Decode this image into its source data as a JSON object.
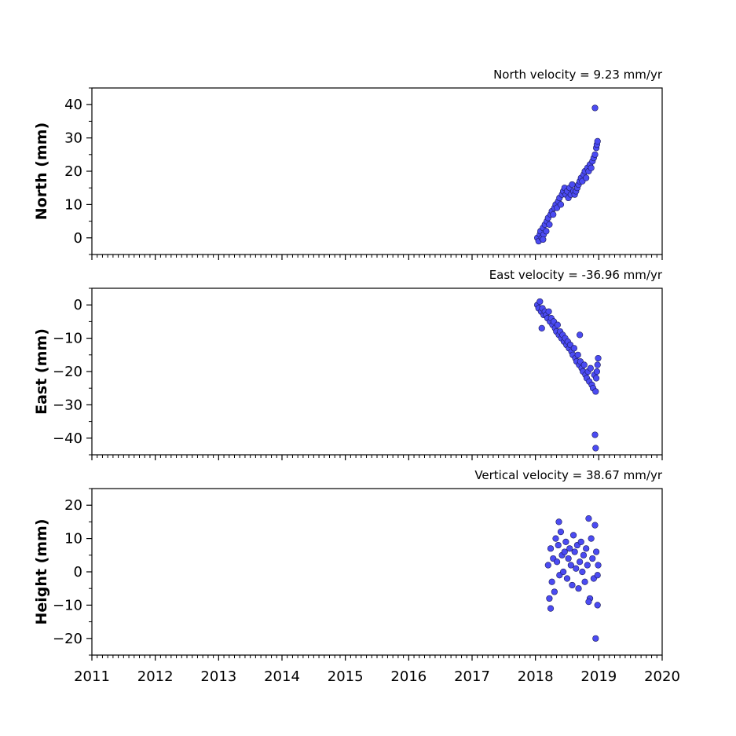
{
  "chart_data": [
    {
      "type": "scatter",
      "velocity_label": "North velocity = 9.23 mm/yr",
      "ylabel": "North (mm)",
      "xlim": [
        2011,
        2020
      ],
      "ylim": [
        -5,
        45
      ],
      "yticks": [
        0,
        10,
        20,
        30,
        40
      ],
      "yticklabels": [
        "0",
        "10",
        "20",
        "30",
        "40"
      ],
      "marker_color": "#4b4bf2",
      "series": [
        {
          "x": [
            2018.03,
            2018.05,
            2018.07,
            2018.08,
            2018.1,
            2018.12,
            2018.13,
            2018.15,
            2018.17,
            2018.18,
            2018.2,
            2018.22,
            2018.24,
            2018.26,
            2018.28,
            2018.3,
            2018.32,
            2018.34,
            2018.36,
            2018.38,
            2018.4,
            2018.42,
            2018.44,
            2018.46,
            2018.48,
            2018.5,
            2018.52,
            2018.54,
            2018.56,
            2018.58,
            2018.6,
            2018.62,
            2018.64,
            2018.66,
            2018.68,
            2018.7,
            2018.72,
            2018.74,
            2018.76,
            2018.78,
            2018.8,
            2018.82,
            2018.84,
            2018.86,
            2018.88,
            2018.9,
            2018.92,
            2018.94,
            2018.96,
            2018.97,
            2018.98,
            2018.94,
            2018.12
          ],
          "y": [
            0,
            -1,
            1,
            2,
            0,
            3,
            1,
            4,
            2,
            5,
            6,
            4,
            7,
            8,
            7,
            9,
            10,
            9,
            11,
            12,
            10,
            13,
            14,
            15,
            13,
            14,
            12,
            15,
            13,
            16,
            14,
            13,
            14,
            15,
            16,
            17,
            18,
            17,
            19,
            20,
            18,
            21,
            20,
            22,
            21,
            23,
            24,
            25,
            27,
            28,
            29,
            39,
            -0.5
          ]
        }
      ]
    },
    {
      "type": "scatter",
      "velocity_label": "East velocity = -36.96 mm/yr",
      "ylabel": "East (mm)",
      "xlim": [
        2011,
        2020
      ],
      "ylim": [
        -45,
        5
      ],
      "yticks": [
        0,
        -10,
        -20,
        -30,
        -40
      ],
      "yticklabels": [
        "0",
        "−10",
        "−20",
        "−30",
        "−40"
      ],
      "marker_color": "#4b4bf2",
      "series": [
        {
          "x": [
            2018.03,
            2018.05,
            2018.07,
            2018.09,
            2018.11,
            2018.13,
            2018.15,
            2018.17,
            2018.19,
            2018.21,
            2018.23,
            2018.25,
            2018.27,
            2018.29,
            2018.31,
            2018.33,
            2018.35,
            2018.37,
            2018.39,
            2018.41,
            2018.43,
            2018.45,
            2018.47,
            2018.49,
            2018.51,
            2018.53,
            2018.55,
            2018.57,
            2018.59,
            2018.61,
            2018.63,
            2018.65,
            2018.67,
            2018.69,
            2018.71,
            2018.73,
            2018.75,
            2018.77,
            2018.79,
            2018.81,
            2018.83,
            2018.85,
            2018.87,
            2018.89,
            2018.91,
            2018.93,
            2018.95,
            2018.96,
            2018.97,
            2018.98,
            2018.99,
            2018.94,
            2018.95,
            2018.1,
            2018.7
          ],
          "y": [
            0,
            -1,
            1,
            -2,
            -1,
            -3,
            -2,
            -3,
            -4,
            -2,
            -5,
            -4,
            -6,
            -5,
            -7,
            -8,
            -6,
            -9,
            -8,
            -10,
            -9,
            -11,
            -10,
            -12,
            -11,
            -13,
            -12,
            -14,
            -15,
            -13,
            -16,
            -17,
            -15,
            -18,
            -17,
            -19,
            -20,
            -18,
            -21,
            -22,
            -20,
            -23,
            -19,
            -24,
            -25,
            -21,
            -26,
            -22,
            -20,
            -18,
            -16,
            -39,
            -43,
            -7,
            -9
          ]
        }
      ]
    },
    {
      "type": "scatter",
      "velocity_label": "Vertical velocity = 38.67 mm/yr",
      "ylabel": "Height (mm)",
      "xlim": [
        2011,
        2020
      ],
      "ylim": [
        -25,
        25
      ],
      "yticks": [
        20,
        10,
        0,
        -10,
        -20
      ],
      "yticklabels": [
        "20",
        "10",
        "0",
        "−10",
        "−20"
      ],
      "xticks": [
        2011,
        2012,
        2013,
        2014,
        2015,
        2016,
        2017,
        2018,
        2019,
        2020
      ],
      "xticklabels": [
        "2011",
        "2012",
        "2013",
        "2014",
        "2015",
        "2016",
        "2017",
        "2018",
        "2019",
        "2020"
      ],
      "marker_color": "#4b4bf2",
      "series": [
        {
          "x": [
            2018.2,
            2018.22,
            2018.24,
            2018.26,
            2018.28,
            2018.3,
            2018.32,
            2018.34,
            2018.36,
            2018.38,
            2018.4,
            2018.42,
            2018.44,
            2018.46,
            2018.48,
            2018.5,
            2018.52,
            2018.54,
            2018.56,
            2018.58,
            2018.6,
            2018.62,
            2018.64,
            2018.66,
            2018.68,
            2018.7,
            2018.72,
            2018.74,
            2018.76,
            2018.78,
            2018.8,
            2018.82,
            2018.84,
            2018.86,
            2018.88,
            2018.9,
            2018.92,
            2018.94,
            2018.96,
            2018.98,
            2018.99,
            2018.24,
            2018.37,
            2018.84,
            2018.95,
            2018.98
          ],
          "y": [
            2,
            -8,
            7,
            -3,
            4,
            -6,
            10,
            3,
            8,
            -1,
            12,
            5,
            0,
            6,
            9,
            -2,
            4,
            7,
            2,
            -4,
            11,
            6,
            1,
            8,
            -5,
            3,
            9,
            0,
            5,
            -3,
            7,
            2,
            16,
            -8,
            10,
            4,
            -2,
            14,
            6,
            -1,
            2,
            -11,
            15,
            -9,
            -20,
            -10
          ]
        }
      ]
    }
  ]
}
